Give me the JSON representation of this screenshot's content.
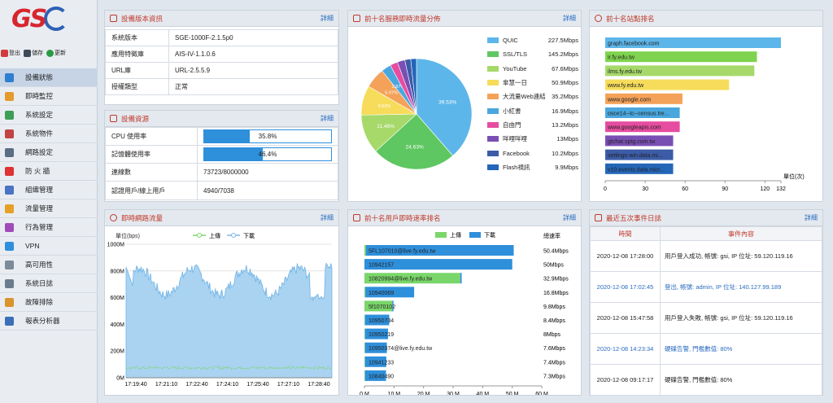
{
  "toolbar": {
    "logout": "登出",
    "save": "儲存",
    "update": "更新"
  },
  "nav": [
    "設備狀態",
    "即時監控",
    "系統設定",
    "系統物件",
    "網路設定",
    "防 火 牆",
    "組織管理",
    "流量管理",
    "行為管理",
    "VPN",
    "高可用性",
    "系統日誌",
    "故障排除",
    "報表分析器"
  ],
  "more": "詳細",
  "version": {
    "title": "設備版本資訊",
    "rows": [
      [
        "系統版本",
        "SGE-1000F-2.1.5p0"
      ],
      [
        "應用特徵庫",
        "AIS-IV-1.1.0.6"
      ],
      [
        "URL庫",
        "URL-2.5.5.9"
      ],
      [
        "授權類型",
        "正常"
      ]
    ]
  },
  "resource": {
    "title": "設備資源",
    "cpu_label": "CPU 使用率",
    "cpu": "35.8%",
    "cpu_val": 35.8,
    "mem_label": "記憶體使用率",
    "mem": "46.4%",
    "mem_val": 46.4,
    "conn_label": "連線數",
    "conn": "73723/8000000",
    "users_label": "認證用戶/線上用戶",
    "users": "4940/7038"
  },
  "traffic": {
    "title": "即時網路流量",
    "unit": "單位(bps)",
    "up": "上傳",
    "down": "下載",
    "yticks": [
      "1000M",
      "800M",
      "600M",
      "400M",
      "200M",
      "0M"
    ],
    "xticks": [
      "17:19:40",
      "17:21:10",
      "17:22:40",
      "17:24:10",
      "17:25:40",
      "17:27:10",
      "17:28:40"
    ]
  },
  "services": {
    "title": "前十名服務即時流量分佈",
    "items": [
      {
        "name": "QUIC",
        "value": "227.5Mbps",
        "color": "#5db6e9"
      },
      {
        "name": "SSL/TLS",
        "value": "145.2Mbps",
        "color": "#5fc761"
      },
      {
        "name": "YouTube",
        "value": "67.6Mbps",
        "color": "#a6d96a"
      },
      {
        "name": "傘慧一日",
        "value": "50.9Mbps",
        "color": "#f6dc5a"
      },
      {
        "name": "大流量Web連結",
        "value": "35.2Mbps",
        "color": "#f4a259"
      },
      {
        "name": "小紅書",
        "value": "16.9Mbps",
        "color": "#4aa7de"
      },
      {
        "name": "自由門",
        "value": "13.2Mbps",
        "color": "#e64da0"
      },
      {
        "name": "咩哩咩哩",
        "value": "13Mbps",
        "color": "#7a4fb4"
      },
      {
        "name": "Facebook",
        "value": "10.2Mbps",
        "color": "#3c5ca8"
      },
      {
        "name": "Flash視訊",
        "value": "9.9Mbps",
        "color": "#2466b8"
      }
    ],
    "labels": [
      "39.53%",
      "24.63%",
      "11.46%",
      "8.63%",
      "5.97%",
      "2.87%"
    ]
  },
  "sites": {
    "title": "前十名站點排名",
    "unit": "單位(次)",
    "xticks": [
      "0",
      "30",
      "60",
      "90",
      "120",
      "132"
    ],
    "items": [
      {
        "name": "graph.facebook.com",
        "value": 132,
        "color": "#5db6e9"
      },
      {
        "name": "ir.fy.edu.tw",
        "value": 114,
        "color": "#7fd34e"
      },
      {
        "name": "ilms.fy.edu.tw",
        "value": 112,
        "color": "#a6d96a"
      },
      {
        "name": "www.fy.edu.tw",
        "value": 93,
        "color": "#f6dc5a"
      },
      {
        "name": "www.google.com",
        "value": 58,
        "color": "#f4a259"
      },
      {
        "name": "osce14--tc--census.tre...",
        "value": 56,
        "color": "#4aa7de"
      },
      {
        "name": "www.googleapis.com",
        "value": 56,
        "color": "#e64da0"
      },
      {
        "name": "gtchat.sptg.com.tw",
        "value": 51,
        "color": "#7a4fb4"
      },
      {
        "name": "settings-win.data.mi...",
        "value": 51,
        "color": "#3c5ca8"
      },
      {
        "name": "v10.events.data.micr...",
        "value": 51,
        "color": "#2466b8"
      }
    ]
  },
  "users": {
    "title": "前十名用戶即時速率排名",
    "up": "上傳",
    "down": "下載",
    "total": "總速率",
    "xticks": [
      "0 M",
      "10 M",
      "20 M",
      "30 M",
      "40 M",
      "50 M",
      "60 M"
    ],
    "items": [
      {
        "name": "5FL107010@live.fy.edu.tw",
        "up": 0.5,
        "down": 50,
        "total": "50.4Mbps"
      },
      {
        "name": "10942157",
        "up": 0,
        "down": 50,
        "total": "50Mbps"
      },
      {
        "name": "10820994@live.fy.edu.tw",
        "up": 32.4,
        "down": 0.5,
        "total": "32.9Mbps"
      },
      {
        "name": "10940069",
        "up": 0.3,
        "down": 16.5,
        "total": "16.8Mbps"
      },
      {
        "name": "5f1070102",
        "up": 9.4,
        "down": 0.4,
        "total": "9.8Mbps"
      },
      {
        "name": "10950734",
        "up": 0.2,
        "down": 8.2,
        "total": "8.4Mbps"
      },
      {
        "name": "10950219",
        "up": 0.2,
        "down": 7.8,
        "total": "8Mbps"
      },
      {
        "name": "10950374@live.fy.edu.tw",
        "up": 0.2,
        "down": 7.4,
        "total": "7.6Mbps"
      },
      {
        "name": "10941233",
        "up": 0.2,
        "down": 7.2,
        "total": "7.4Mbps"
      },
      {
        "name": "10840490",
        "up": 0.2,
        "down": 7.1,
        "total": "7.3Mbps"
      }
    ]
  },
  "events": {
    "title": "最近五次事件日誌",
    "col_time": "時間",
    "col_content": "事件內容",
    "rows": [
      {
        "time": "2020-12-08 17:28:00",
        "text": "用戶登入成功, 帳號: gsi, IP 位址: 59.120.119.16",
        "blue": false
      },
      {
        "time": "2020-12-08 17:02:45",
        "text": "登出, 帳號: admin, IP 位址: 140.127.99.189",
        "blue": true
      },
      {
        "time": "2020-12-08 15:47:58",
        "text": "用戶登入失敗, 帳號: gsi, IP 位址: 59.120.119.16",
        "blue": false
      },
      {
        "time": "2020-12-08 14:23:34",
        "text": "硬碟告警, 門檻數值: 80%",
        "blue": true
      },
      {
        "time": "2020-12-08 09:17:17",
        "text": "硬碟告警, 門檻數值: 80%",
        "blue": false
      }
    ]
  }
}
